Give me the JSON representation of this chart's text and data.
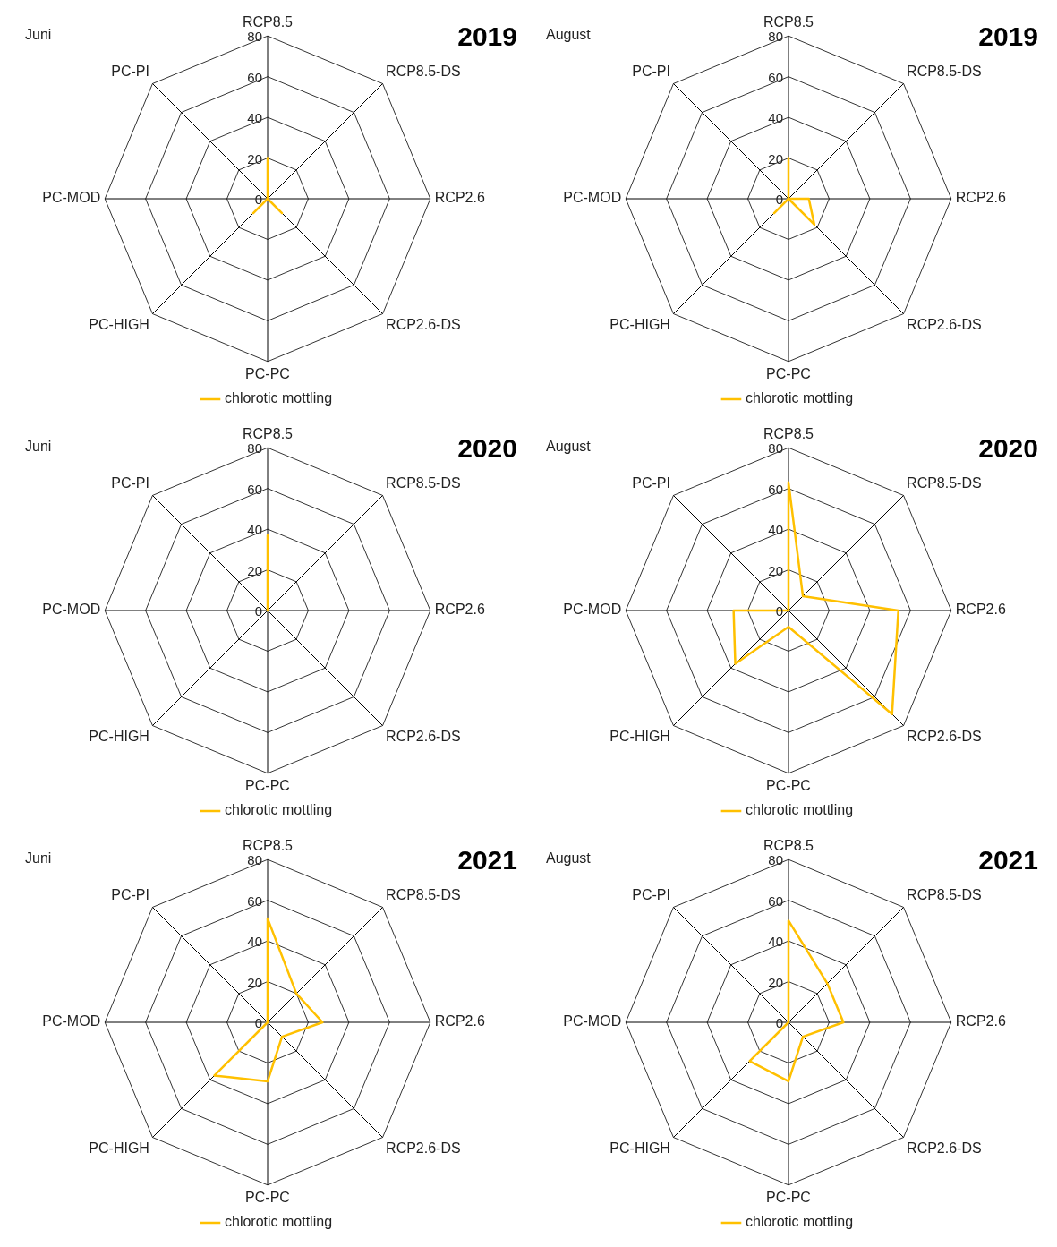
{
  "chart_data": [
    {
      "type": "radar",
      "title": "2019",
      "subtitle": "Juni",
      "categories": [
        "RCP8.5",
        "RCP8.5-DS",
        "RCP2.6",
        "RCP2.6-DS",
        "PC-PC",
        "PC-HIGH",
        "PC-MOD",
        "PC-PI"
      ],
      "series": [
        {
          "name": "chlorotic mottling",
          "color": "#ffc000",
          "values": [
            20,
            0,
            0,
            10,
            0,
            10,
            0,
            0
          ]
        }
      ],
      "ylim": [
        0,
        80
      ],
      "yticks": [
        0,
        20,
        40,
        60,
        80
      ],
      "grid": true,
      "legend": "bottom"
    },
    {
      "type": "radar",
      "title": "2019",
      "subtitle": "August",
      "categories": [
        "RCP8.5",
        "RCP8.5-DS",
        "RCP2.6",
        "RCP2.6-DS",
        "PC-PC",
        "PC-HIGH",
        "PC-MOD",
        "PC-PI"
      ],
      "series": [
        {
          "name": "chlorotic mottling",
          "color": "#ffc000",
          "values": [
            20,
            0,
            10,
            18,
            0,
            10,
            0,
            0
          ]
        }
      ],
      "ylim": [
        0,
        80
      ],
      "yticks": [
        0,
        20,
        40,
        60,
        80
      ],
      "grid": true,
      "legend": "bottom"
    },
    {
      "type": "radar",
      "title": "2020",
      "subtitle": "Juni",
      "categories": [
        "RCP8.5",
        "RCP8.5-DS",
        "RCP2.6",
        "RCP2.6-DS",
        "PC-PC",
        "PC-HIGH",
        "PC-MOD",
        "PC-PI"
      ],
      "series": [
        {
          "name": "chlorotic mottling",
          "color": "#ffc000",
          "values": [
            37,
            0,
            0,
            0,
            0,
            0,
            0,
            0
          ]
        }
      ],
      "ylim": [
        0,
        80
      ],
      "yticks": [
        0,
        20,
        40,
        60,
        80
      ],
      "grid": true,
      "legend": "bottom"
    },
    {
      "type": "radar",
      "title": "2020",
      "subtitle": "August",
      "categories": [
        "RCP8.5",
        "RCP8.5-DS",
        "RCP2.6",
        "RCP2.6-DS",
        "PC-PC",
        "PC-HIGH",
        "PC-MOD",
        "PC-PI"
      ],
      "series": [
        {
          "name": "chlorotic mottling",
          "color": "#ffc000",
          "values": [
            63,
            10,
            54,
            72,
            8,
            37,
            27,
            0
          ]
        }
      ],
      "ylim": [
        0,
        80
      ],
      "yticks": [
        0,
        20,
        40,
        60,
        80
      ],
      "grid": true,
      "legend": "bottom"
    },
    {
      "type": "radar",
      "title": "2021",
      "subtitle": "Juni",
      "categories": [
        "RCP8.5",
        "RCP8.5-DS",
        "RCP2.6",
        "RCP2.6-DS",
        "PC-PC",
        "PC-HIGH",
        "PC-MOD",
        "PC-PI"
      ],
      "series": [
        {
          "name": "chlorotic mottling",
          "color": "#ffc000",
          "values": [
            51,
            20,
            27,
            10,
            29,
            37,
            0,
            0
          ]
        }
      ],
      "ylim": [
        0,
        80
      ],
      "yticks": [
        0,
        20,
        40,
        60,
        80
      ],
      "grid": true,
      "legend": "bottom"
    },
    {
      "type": "radar",
      "title": "2021",
      "subtitle": "August",
      "categories": [
        "RCP8.5",
        "RCP8.5-DS",
        "RCP2.6",
        "RCP2.6-DS",
        "PC-PC",
        "PC-HIGH",
        "PC-MOD",
        "PC-PI"
      ],
      "series": [
        {
          "name": "chlorotic mottling",
          "color": "#ffc000",
          "values": [
            50,
            27,
            27,
            10,
            29,
            27,
            0,
            0
          ]
        }
      ],
      "ylim": [
        0,
        80
      ],
      "yticks": [
        0,
        20,
        40,
        60,
        80
      ],
      "grid": true,
      "legend": "bottom"
    }
  ]
}
